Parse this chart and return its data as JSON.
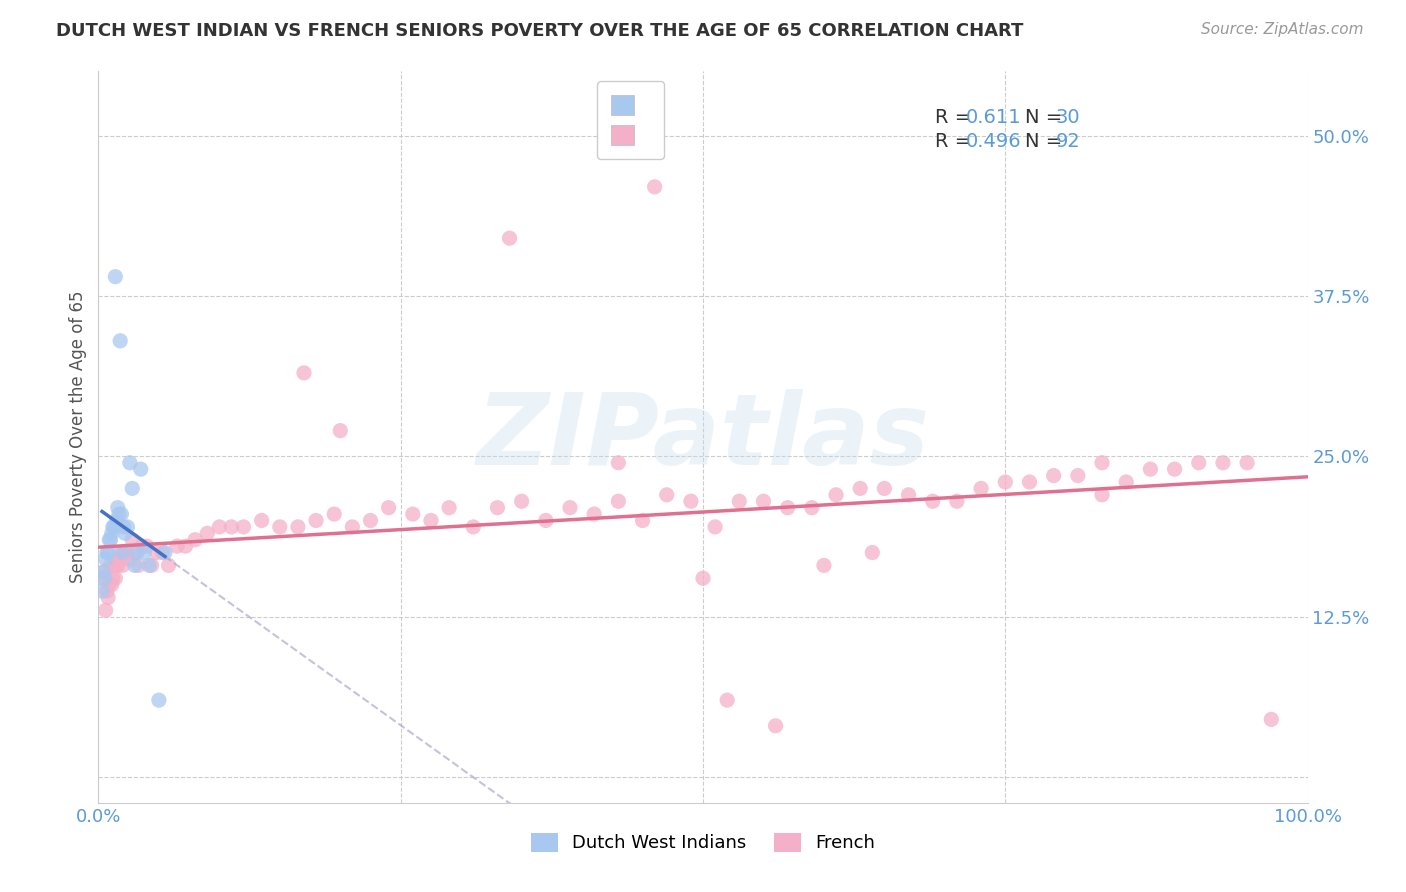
{
  "title": "DUTCH WEST INDIAN VS FRENCH SENIORS POVERTY OVER THE AGE OF 65 CORRELATION CHART",
  "source": "Source: ZipAtlas.com",
  "ylabel": "Seniors Poverty Over the Age of 65",
  "xlim": [
    0.0,
    1.0
  ],
  "ylim": [
    -0.02,
    0.55
  ],
  "ytick_positions": [
    0.0,
    0.125,
    0.25,
    0.375,
    0.5
  ],
  "yticklabels": [
    "",
    "12.5%",
    "25.0%",
    "37.5%",
    "50.0%"
  ],
  "background_color": "#ffffff",
  "grid_color": "#cccccc",
  "watermark_text": "ZIPatlas",
  "color_blue": "#a8c8f0",
  "color_pink": "#f4b0c8",
  "color_blue_dark": "#4472c4",
  "color_pink_dark": "#e07090",
  "color_axis_text": "#5b9bd5",
  "dutch_x": [
    0.003,
    0.004,
    0.005,
    0.006,
    0.007,
    0.008,
    0.009,
    0.01,
    0.011,
    0.012,
    0.013,
    0.014,
    0.015,
    0.016,
    0.017,
    0.018,
    0.019,
    0.02,
    0.021,
    0.022,
    0.024,
    0.026,
    0.028,
    0.03,
    0.032,
    0.035,
    0.038,
    0.042,
    0.05,
    0.055
  ],
  "dutch_y": [
    0.145,
    0.16,
    0.155,
    0.17,
    0.175,
    0.175,
    0.185,
    0.185,
    0.19,
    0.195,
    0.195,
    0.39,
    0.2,
    0.21,
    0.205,
    0.34,
    0.205,
    0.175,
    0.195,
    0.19,
    0.195,
    0.245,
    0.225,
    0.165,
    0.175,
    0.24,
    0.175,
    0.165,
    0.06,
    0.175
  ],
  "french_x": [
    0.004,
    0.005,
    0.006,
    0.007,
    0.008,
    0.009,
    0.01,
    0.011,
    0.012,
    0.013,
    0.014,
    0.015,
    0.016,
    0.017,
    0.018,
    0.019,
    0.02,
    0.022,
    0.024,
    0.026,
    0.028,
    0.03,
    0.033,
    0.036,
    0.04,
    0.044,
    0.048,
    0.053,
    0.058,
    0.065,
    0.072,
    0.08,
    0.09,
    0.1,
    0.11,
    0.12,
    0.135,
    0.15,
    0.165,
    0.18,
    0.195,
    0.21,
    0.225,
    0.24,
    0.26,
    0.275,
    0.29,
    0.31,
    0.33,
    0.35,
    0.37,
    0.39,
    0.41,
    0.43,
    0.45,
    0.47,
    0.49,
    0.51,
    0.53,
    0.55,
    0.57,
    0.59,
    0.61,
    0.63,
    0.65,
    0.67,
    0.69,
    0.71,
    0.73,
    0.75,
    0.77,
    0.79,
    0.81,
    0.83,
    0.85,
    0.87,
    0.89,
    0.91,
    0.93,
    0.95,
    0.17,
    0.2,
    0.34,
    0.43,
    0.46,
    0.5,
    0.52,
    0.56,
    0.6,
    0.64,
    0.83,
    0.97
  ],
  "french_y": [
    0.155,
    0.16,
    0.13,
    0.145,
    0.14,
    0.15,
    0.165,
    0.15,
    0.155,
    0.165,
    0.155,
    0.165,
    0.165,
    0.17,
    0.175,
    0.17,
    0.165,
    0.175,
    0.175,
    0.17,
    0.185,
    0.175,
    0.165,
    0.18,
    0.18,
    0.165,
    0.175,
    0.175,
    0.165,
    0.18,
    0.18,
    0.185,
    0.19,
    0.195,
    0.195,
    0.195,
    0.2,
    0.195,
    0.195,
    0.2,
    0.205,
    0.195,
    0.2,
    0.21,
    0.205,
    0.2,
    0.21,
    0.195,
    0.21,
    0.215,
    0.2,
    0.21,
    0.205,
    0.215,
    0.2,
    0.22,
    0.215,
    0.195,
    0.215,
    0.215,
    0.21,
    0.21,
    0.22,
    0.225,
    0.225,
    0.22,
    0.215,
    0.215,
    0.225,
    0.23,
    0.23,
    0.235,
    0.235,
    0.245,
    0.23,
    0.24,
    0.24,
    0.245,
    0.245,
    0.245,
    0.315,
    0.27,
    0.42,
    0.245,
    0.46,
    0.155,
    0.06,
    0.04,
    0.165,
    0.175,
    0.22,
    0.045
  ]
}
